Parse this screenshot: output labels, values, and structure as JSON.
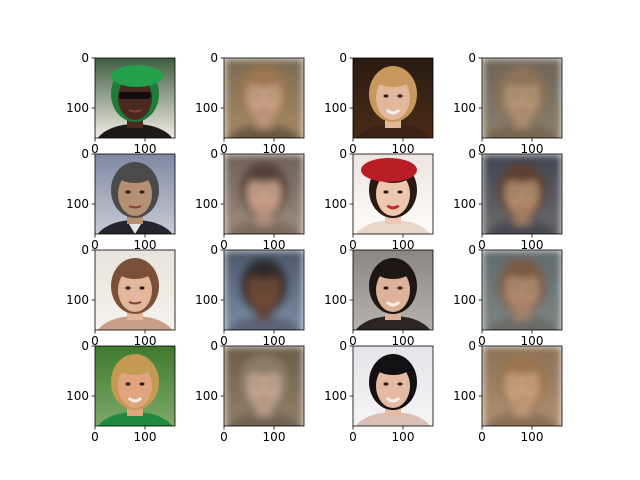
{
  "figure": {
    "rows": 4,
    "cols": 4,
    "axes": {
      "xlim": [
        0,
        160
      ],
      "ylim": [
        160,
        0
      ],
      "xticks": [
        0,
        100
      ],
      "yticks": [
        0,
        100
      ]
    },
    "tick_labels": [
      "0",
      "100"
    ],
    "panels": [
      {
        "kind": "photo",
        "bg": [
          "#3e5d41",
          "#f3ece4"
        ],
        "skin": "#4a2a1e",
        "hair": "#1c7c38",
        "cloth": "#1e1a18",
        "accessory": "cap+sunglasses"
      },
      {
        "kind": "recon",
        "bg": [
          "#7a6a52",
          "#a88a66"
        ],
        "skin": "#c8a084",
        "hair": "#9b7650",
        "cloth": "#6a5842"
      },
      {
        "kind": "photo",
        "bg": [
          "#2a1c12",
          "#4b2b16"
        ],
        "skin": "#e2b89a",
        "hair": "#c8985c",
        "cloth": "#3b2216",
        "accessory": "smile"
      },
      {
        "kind": "recon",
        "bg": [
          "#6d6456",
          "#8a7e6c"
        ],
        "skin": "#b49474",
        "hair": "#8c7258",
        "cloth": "#746650"
      },
      {
        "kind": "photo",
        "bg": [
          "#7f8aa2",
          "#c7cad6"
        ],
        "skin": "#b69072",
        "hair": "#4a4a4a",
        "cloth": "#24252c",
        "accessory": "suit"
      },
      {
        "kind": "recon",
        "bg": [
          "#6e6056",
          "#9e8c7e"
        ],
        "skin": "#c6a08a",
        "hair": "#55403a",
        "cloth": "#7a6a5e"
      },
      {
        "kind": "photo",
        "bg": [
          "#ece6e2",
          "#fefcfa"
        ],
        "skin": "#eec7b0",
        "hair": "#2a1a14",
        "cloth": "#e8d8cc",
        "accessory": "red-beret"
      },
      {
        "kind": "recon",
        "bg": [
          "#3e4452",
          "#6e6a6a"
        ],
        "skin": "#b08a6a",
        "hair": "#5b4030",
        "cloth": "#4a4a52"
      },
      {
        "kind": "photo",
        "bg": [
          "#e7e3dc",
          "#f6f3ee"
        ],
        "skin": "#e2b79a",
        "hair": "#7a5038",
        "cloth": "#c8a08a"
      },
      {
        "kind": "recon",
        "bg": [
          "#4a5668",
          "#7a8ea4"
        ],
        "skin": "#6b4a36",
        "hair": "#2e2a2a",
        "cloth": "#5a6478"
      },
      {
        "kind": "photo",
        "bg": [
          "#8a8684",
          "#b6b2ae"
        ],
        "skin": "#ddb29a",
        "hair": "#1e1612",
        "cloth": "#2c2420",
        "accessory": "smile"
      },
      {
        "kind": "recon",
        "bg": [
          "#5e6a6c",
          "#7e8684"
        ],
        "skin": "#b08a70",
        "hair": "#7a5a44",
        "cloth": "#6a6a66"
      },
      {
        "kind": "photo",
        "bg": [
          "#3f7a2e",
          "#7ea86a"
        ],
        "skin": "#e0a480",
        "hair": "#c49a52",
        "cloth": "#1f8a3e",
        "accessory": "smile"
      },
      {
        "kind": "recon",
        "bg": [
          "#6a5a46",
          "#94806a"
        ],
        "skin": "#c2a690",
        "hair": "#8a7a66",
        "cloth": "#6e6252"
      },
      {
        "kind": "photo",
        "bg": [
          "#e6e4e8",
          "#f5f4f6"
        ],
        "skin": "#e4baa2",
        "hair": "#121012",
        "cloth": "#d8c0b8",
        "accessory": "smile"
      },
      {
        "kind": "recon",
        "bg": [
          "#8a7054",
          "#b09072"
        ],
        "skin": "#c8a07c",
        "hair": "#9a7450",
        "cloth": "#8a6e52"
      }
    ]
  }
}
